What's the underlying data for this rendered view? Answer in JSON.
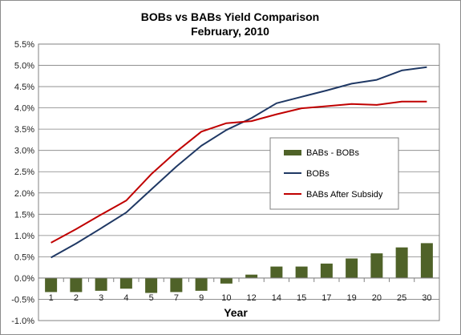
{
  "chart_data": {
    "type": "bar+line",
    "title": "BOBs vs BABs Yield Comparison",
    "subtitle": "February, 2010",
    "xlabel": "Year",
    "ylabel": "",
    "ylim": [
      -0.01,
      0.055
    ],
    "yticks": [
      "-1.0%",
      "-0.5%",
      "0.0%",
      "0.5%",
      "1.0%",
      "1.5%",
      "2.0%",
      "2.5%",
      "3.0%",
      "3.5%",
      "4.0%",
      "4.5%",
      "5.0%",
      "5.5%"
    ],
    "categories": [
      "1",
      "2",
      "3",
      "4",
      "5",
      "7",
      "9",
      "10",
      "12",
      "14",
      "15",
      "17",
      "19",
      "20",
      "25",
      "30"
    ],
    "grid": true,
    "legend_position": "right-center",
    "series": [
      {
        "name": "BABs - BOBs",
        "type": "bar",
        "color": "#4f6228",
        "values": [
          -0.0033,
          -0.0033,
          -0.003,
          -0.0025,
          -0.0035,
          -0.0033,
          -0.003,
          -0.0013,
          0.0008,
          0.0027,
          0.0027,
          0.0034,
          0.0046,
          0.0058,
          0.0072,
          0.0082
        ]
      },
      {
        "name": "BOBs",
        "type": "line",
        "color": "#1f3864",
        "values": [
          0.0048,
          0.0081,
          0.0117,
          0.0154,
          0.0208,
          0.0262,
          0.0311,
          0.0348,
          0.0376,
          0.0411,
          0.0426,
          0.0441,
          0.0457,
          0.0466,
          0.0488,
          0.0496
        ]
      },
      {
        "name": "BABs After Subsidy",
        "type": "line",
        "color": "#c00000",
        "values": [
          0.0083,
          0.0115,
          0.0149,
          0.0182,
          0.0244,
          0.0297,
          0.0344,
          0.0364,
          0.0369,
          0.0385,
          0.0399,
          0.0404,
          0.0409,
          0.0407,
          0.0415,
          0.0415
        ]
      }
    ]
  }
}
